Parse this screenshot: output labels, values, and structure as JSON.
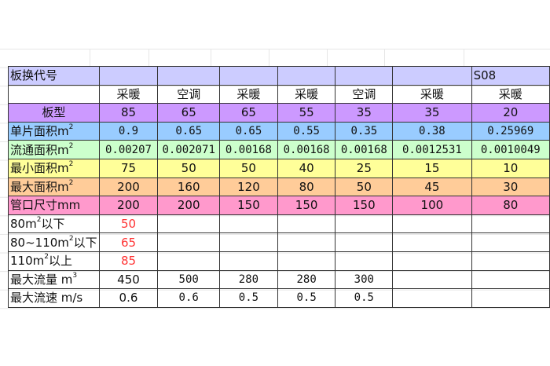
{
  "header": {
    "label": "板换代号",
    "values": [
      "",
      "",
      "",
      "",
      "",
      "",
      "S08"
    ]
  },
  "usage": {
    "label": "",
    "values": [
      "采暖",
      "空调",
      "采暖",
      "采暖",
      "空调",
      "采暖",
      "采暖"
    ]
  },
  "board_type": {
    "label": "板型",
    "values": [
      "85",
      "65",
      "65",
      "55",
      "35",
      "35",
      "20"
    ]
  },
  "single_area": {
    "label": "单片面积m",
    "sup": "2",
    "values": [
      "0.9",
      "0.65",
      "0.65",
      "0.55",
      "0.35",
      "0.38",
      "0.25969"
    ]
  },
  "flow_area": {
    "label": "流通面积m",
    "sup": "2",
    "values": [
      "0.00207",
      "0.002071",
      "0.00168",
      "0.00168",
      "0.00168",
      "0.0012531",
      "0.0010049"
    ]
  },
  "min_area": {
    "label": "最小面积m",
    "sup": "2",
    "values": [
      "75",
      "50",
      "50",
      "40",
      "25",
      "15",
      "10"
    ]
  },
  "max_area": {
    "label": "最大面积m",
    "sup": "2",
    "values": [
      "200",
      "160",
      "120",
      "80",
      "50",
      "45",
      "30"
    ]
  },
  "pipe_size": {
    "label": "管口尺寸mm",
    "values": [
      "200",
      "200",
      "150",
      "150",
      "150",
      "100",
      "80"
    ]
  },
  "below80": {
    "label_a": "80m",
    "sup": "2",
    "label_b": "以下",
    "value": "50"
  },
  "range80_110": {
    "label_a": "80~110m",
    "sup": "2",
    "label_b": "以下",
    "value": "65"
  },
  "above110": {
    "label_a": "110m",
    "sup": "2",
    "label_b": "以上",
    "value": "85"
  },
  "max_flow": {
    "label": "最大流量 m",
    "sup": "3",
    "values": [
      "450",
      "500",
      "280",
      "280",
      "300",
      "",
      ""
    ]
  },
  "max_speed": {
    "label": "最大流速 m/s",
    "values": [
      "0.6",
      "0.6",
      "0.5",
      "0.5",
      "0.5",
      "",
      ""
    ]
  },
  "colors": {
    "header": "#ccccff",
    "board_type": "#cc99ff",
    "single_area": "#99ccff",
    "flow_area": "#ccffcc",
    "min_area": "#ffff99",
    "max_area": "#ffcc99",
    "pipe_size": "#ff99cc",
    "highlight_text": "#ff3333"
  }
}
